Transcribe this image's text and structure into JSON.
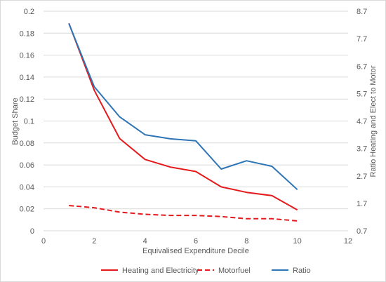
{
  "chart_data": {
    "type": "line",
    "title": "",
    "xlabel": "Equivalised Expenditure Decile",
    "ylabel": "Budget Share",
    "y2label": "Ratio Heating and Elect to Motor",
    "xlim": [
      0,
      12
    ],
    "xticks": [
      0,
      2,
      4,
      6,
      8,
      10,
      12
    ],
    "ylim": [
      0,
      0.2
    ],
    "yticks": [
      "0",
      "0.02",
      "0.04",
      "0.06",
      "0.08",
      "0.1",
      "0.12",
      "0.14",
      "0.16",
      "0.18",
      "0.2"
    ],
    "y2lim": [
      0.7,
      8.7
    ],
    "y2ticks": [
      "0.7",
      "1.7",
      "2.7",
      "3.7",
      "4.7",
      "5.7",
      "6.7",
      "7.7",
      "8.7"
    ],
    "grid": "horizontal",
    "legend_position": "bottom",
    "x": [
      1,
      2,
      3,
      4,
      5,
      6,
      7,
      8,
      9,
      10
    ],
    "series": [
      {
        "name": "Heating and Electricity",
        "axis": "left",
        "color": "#e41a1c",
        "dash": "solid",
        "values": [
          0.189,
          0.128,
          0.084,
          0.065,
          0.058,
          0.054,
          0.04,
          0.035,
          0.032,
          0.019
        ]
      },
      {
        "name": "Motorfuel",
        "axis": "left",
        "color": "#e41a1c",
        "dash": "dashed",
        "values": [
          0.023,
          0.021,
          0.017,
          0.015,
          0.014,
          0.014,
          0.013,
          0.011,
          0.011,
          0.009
        ]
      },
      {
        "name": "Ratio",
        "axis": "right",
        "color": "#2e75b6",
        "dash": "solid",
        "values": [
          8.25,
          5.95,
          4.85,
          4.2,
          4.05,
          3.98,
          2.95,
          3.25,
          3.05,
          2.2
        ]
      }
    ]
  }
}
